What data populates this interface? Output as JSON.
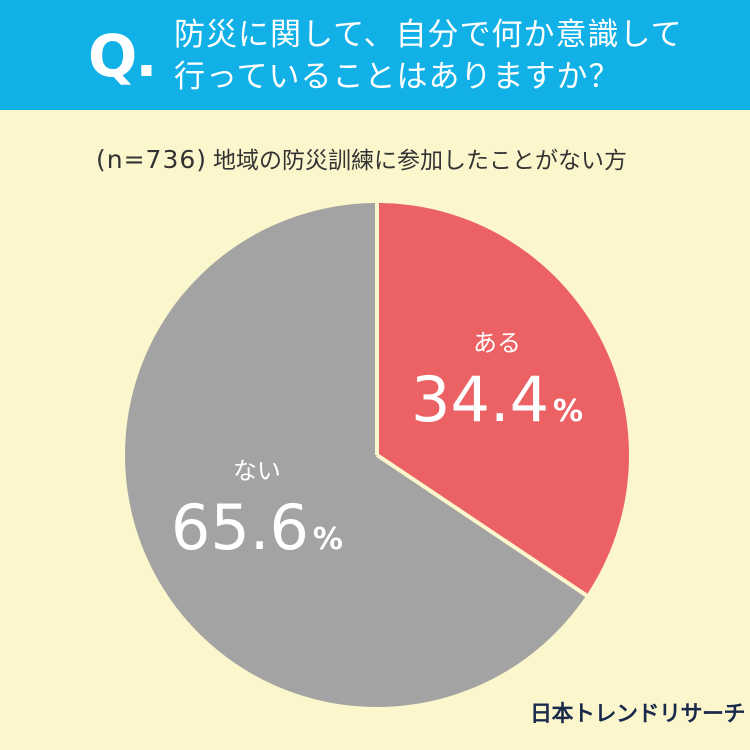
{
  "question": {
    "mark": "Q",
    "dot": ".",
    "lines": [
      "防災に関して、自分で何か意識して",
      "行っていることはありますか？"
    ]
  },
  "subtitle": {
    "sample": "(n=736)",
    "text": "地域の防災訓練に参加したことがない方"
  },
  "chart_data": {
    "type": "pie",
    "start": "12 o'clock",
    "direction": "clockwise",
    "slices": [
      {
        "label": "ある",
        "value": 34.4,
        "display": "34.4",
        "unit": "%",
        "color": "#ec6163"
      },
      {
        "label": "ない",
        "value": 65.6,
        "display": "65.6",
        "unit": "%",
        "color": "#a3a3a3"
      }
    ],
    "separator_color": "#fbf6cc"
  },
  "colors": {
    "header": "#11b0e6",
    "background": "#fbf6cc",
    "text": "#333333",
    "logo": "#1a2a4a"
  },
  "logo": {
    "text": "日本トレンドリサーチ"
  }
}
